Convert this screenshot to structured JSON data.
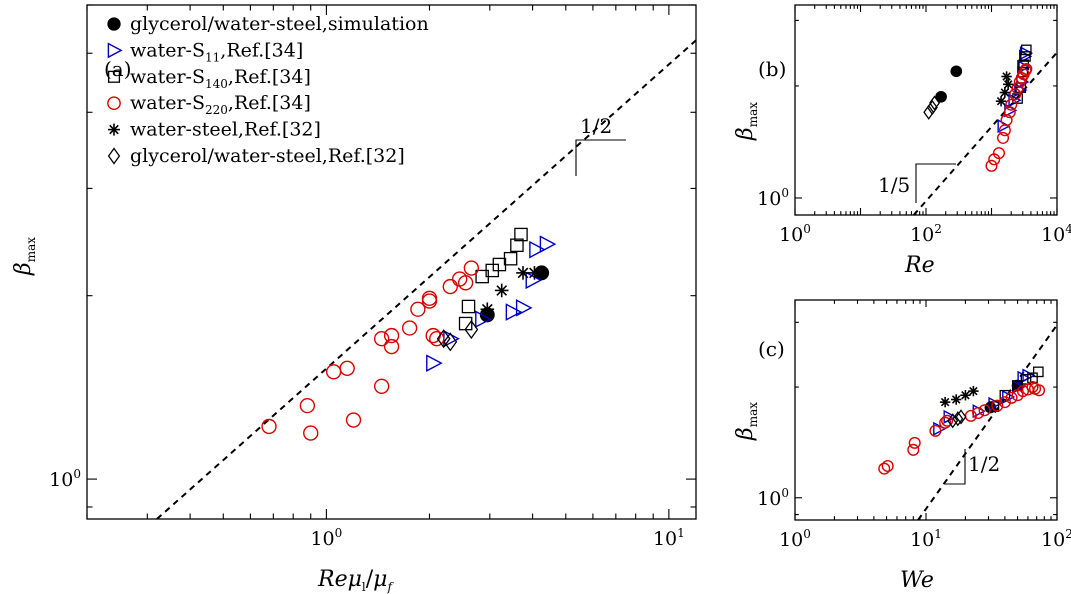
{
  "chart_data": [
    {
      "panel_label": "(a)",
      "type": "scatter",
      "xlabel": "Reμ_l/μ_f",
      "ylabel": "β_max",
      "x_scale": "log",
      "y_scale": "log",
      "xlim": [
        0.2,
        12
      ],
      "ylim": [
        0.86,
        6.0
      ],
      "x_ticks": [
        {
          "value": 1,
          "base": "10",
          "exp": "0"
        },
        {
          "value": 10,
          "base": "10",
          "exp": "1"
        }
      ],
      "y_ticks": [
        {
          "value": 1,
          "base": "10",
          "exp": "0"
        }
      ],
      "legend_position": "top-left",
      "slope_label": "1/2",
      "fit_line": {
        "style": "dashed",
        "slope": 0.5,
        "points": [
          [
            0.32,
            0.86
          ],
          [
            12,
            5.25
          ]
        ]
      },
      "series": [
        {
          "name": "glycerol/water-steel,simulation",
          "marker": "filled-circle",
          "color": "#000000",
          "points": [
            [
              2.95,
              1.86
            ],
            [
              4.25,
              2.18
            ]
          ]
        },
        {
          "name": "water-S11,Ref.[34]",
          "marker": "triangle-right",
          "color": "#0000cc",
          "points": [
            [
              2.05,
              1.55
            ],
            [
              2.3,
              1.7
            ],
            [
              2.85,
              1.83
            ],
            [
              3.5,
              1.88
            ],
            [
              3.75,
              1.91
            ],
            [
              4.0,
              2.12
            ],
            [
              4.1,
              2.38
            ],
            [
              4.4,
              2.43
            ]
          ]
        },
        {
          "name": "water-S140,Ref.[34]",
          "marker": "square",
          "color": "#000000",
          "points": [
            [
              2.55,
              1.8
            ],
            [
              2.6,
              1.92
            ],
            [
              2.85,
              2.15
            ],
            [
              3.05,
              2.2
            ],
            [
              3.2,
              2.25
            ],
            [
              3.45,
              2.3
            ],
            [
              3.6,
              2.42
            ],
            [
              3.7,
              2.52
            ]
          ]
        },
        {
          "name": "water-S220,Ref.[34]",
          "marker": "circle",
          "color": "#dd0000",
          "points": [
            [
              0.68,
              1.22
            ],
            [
              0.88,
              1.32
            ],
            [
              0.9,
              1.19
            ],
            [
              1.05,
              1.5
            ],
            [
              1.15,
              1.52
            ],
            [
              1.2,
              1.25
            ],
            [
              1.45,
              1.42
            ],
            [
              1.45,
              1.7
            ],
            [
              1.55,
              1.65
            ],
            [
              1.55,
              1.72
            ],
            [
              1.75,
              1.77
            ],
            [
              1.85,
              1.9
            ],
            [
              2.0,
              1.98
            ],
            [
              2.0,
              1.96
            ],
            [
              2.05,
              1.72
            ],
            [
              2.1,
              1.7
            ],
            [
              2.3,
              2.07
            ],
            [
              2.45,
              2.13
            ],
            [
              2.55,
              2.1
            ],
            [
              2.65,
              2.22
            ]
          ]
        },
        {
          "name": "water-steel,Ref.[32]",
          "marker": "asterisk",
          "color": "#000000",
          "points": [
            [
              2.95,
              1.9
            ],
            [
              3.25,
              2.04
            ],
            [
              3.75,
              2.18
            ],
            [
              4.05,
              2.18
            ]
          ]
        },
        {
          "name": "glycerol/water-steel,Ref.[32]",
          "marker": "diamond",
          "color": "#000000",
          "points": [
            [
              2.2,
              1.7
            ],
            [
              2.3,
              1.68
            ],
            [
              2.65,
              1.76
            ]
          ]
        }
      ]
    },
    {
      "panel_label": "(b)",
      "type": "scatter",
      "xlabel": "Re",
      "ylabel": "β_max",
      "x_scale": "log",
      "y_scale": "log",
      "xlim": [
        1,
        10000
      ],
      "ylim": [
        0.9,
        3.3
      ],
      "x_ticks": [
        {
          "value": 1,
          "base": "10",
          "exp": "0"
        },
        {
          "value": 100,
          "base": "10",
          "exp": "2"
        },
        {
          "value": 10000,
          "base": "10",
          "exp": "4"
        }
      ],
      "y_ticks": [
        {
          "value": 1,
          "base": "10",
          "exp": "0"
        }
      ],
      "slope_label": "1/5",
      "fit_line": {
        "style": "dashed",
        "slope": 0.2,
        "points": [
          [
            65,
            0.9
          ],
          [
            10000,
            2.46
          ]
        ]
      },
      "series": [
        {
          "name": "glycerol/water-steel,simulation",
          "marker": "filled-circle",
          "color": "#000000",
          "points": [
            [
              170,
              1.87
            ],
            [
              290,
              2.19
            ]
          ]
        },
        {
          "name": "water-S11,Ref.[34]",
          "marker": "triangle-right",
          "color": "#0000cc",
          "points": [
            [
              1500,
              1.56
            ],
            [
              1900,
              1.72
            ],
            [
              2200,
              1.83
            ],
            [
              2700,
              1.95
            ],
            [
              2900,
              2.05
            ],
            [
              3000,
              2.25
            ],
            [
              3200,
              2.4
            ],
            [
              3300,
              2.45
            ]
          ]
        },
        {
          "name": "water-S140,Ref.[34]",
          "marker": "square",
          "color": "#000000",
          "points": [
            [
              2500,
              1.85
            ],
            [
              2800,
              1.98
            ],
            [
              3000,
              2.18
            ],
            [
              3100,
              2.28
            ],
            [
              3300,
              2.4
            ],
            [
              3400,
              2.5
            ]
          ]
        },
        {
          "name": "water-S220,Ref.[34]",
          "marker": "circle",
          "color": "#dd0000",
          "points": [
            [
              1000,
              1.22
            ],
            [
              1100,
              1.27
            ],
            [
              1300,
              1.32
            ],
            [
              1500,
              1.45
            ],
            [
              1600,
              1.52
            ],
            [
              1700,
              1.62
            ],
            [
              1900,
              1.7
            ],
            [
              2000,
              1.78
            ],
            [
              2300,
              1.9
            ],
            [
              2500,
              1.97
            ],
            [
              2700,
              2.05
            ],
            [
              2900,
              2.1
            ],
            [
              3100,
              2.15
            ],
            [
              3300,
              2.2
            ],
            [
              3400,
              2.22
            ]
          ]
        },
        {
          "name": "water-steel,Ref.[32]",
          "marker": "asterisk",
          "color": "#000000",
          "points": [
            [
              1400,
              1.82
            ],
            [
              1600,
              1.92
            ],
            [
              1800,
              2.02
            ],
            [
              1700,
              2.12
            ]
          ]
        },
        {
          "name": "glycerol/water-steel,Ref.[32]",
          "marker": "diamond",
          "color": "#000000",
          "points": [
            [
              110,
              1.7
            ],
            [
              125,
              1.75
            ],
            [
              135,
              1.8
            ]
          ]
        }
      ]
    },
    {
      "panel_label": "(c)",
      "type": "scatter",
      "xlabel": "We",
      "ylabel": "β_max",
      "x_scale": "log",
      "y_scale": "log",
      "xlim": [
        1,
        100
      ],
      "ylim": [
        0.87,
        3.45
      ],
      "x_ticks": [
        {
          "value": 1,
          "base": "10",
          "exp": "0"
        },
        {
          "value": 10,
          "base": "10",
          "exp": "1"
        },
        {
          "value": 100,
          "base": "10",
          "exp": "2"
        }
      ],
      "y_ticks": [
        {
          "value": 1,
          "base": "10",
          "exp": "0"
        }
      ],
      "slope_label": "1/2",
      "fit_line": {
        "style": "dashed",
        "slope": 0.5,
        "points": [
          [
            8.7,
            0.87
          ],
          [
            100,
            2.95
          ]
        ]
      },
      "series": [
        {
          "name": "glycerol/water-steel,simulation",
          "marker": "filled-circle",
          "color": "#000000",
          "points": [
            [
              31,
              1.76
            ],
            [
              50,
              2.02
            ]
          ]
        },
        {
          "name": "water-S11,Ref.[34]",
          "marker": "triangle-right",
          "color": "#0000cc",
          "points": [
            [
              12.5,
              1.54
            ],
            [
              15,
              1.66
            ],
            [
              25,
              1.72
            ],
            [
              33,
              1.8
            ],
            [
              42,
              1.88
            ],
            [
              50,
              2.0
            ],
            [
              55,
              2.12
            ],
            [
              60,
              2.15
            ]
          ]
        },
        {
          "name": "water-S140,Ref.[34]",
          "marker": "square",
          "color": "#000000",
          "points": [
            [
              33,
              1.77
            ],
            [
              40,
              1.9
            ],
            [
              50,
              2.02
            ],
            [
              58,
              2.1
            ],
            [
              65,
              2.12
            ],
            [
              72,
              2.2
            ]
          ]
        },
        {
          "name": "water-S220,Ref.[34]",
          "marker": "circle",
          "color": "#dd0000",
          "points": [
            [
              4.8,
              1.2
            ],
            [
              5.1,
              1.22
            ],
            [
              8.0,
              1.35
            ],
            [
              8.2,
              1.41
            ],
            [
              11.8,
              1.52
            ],
            [
              14,
              1.6
            ],
            [
              14.5,
              1.62
            ],
            [
              22,
              1.67
            ],
            [
              25,
              1.7
            ],
            [
              28,
              1.73
            ],
            [
              35,
              1.78
            ],
            [
              40,
              1.82
            ],
            [
              45,
              1.87
            ],
            [
              50,
              1.9
            ],
            [
              55,
              1.95
            ],
            [
              60,
              1.97
            ],
            [
              65,
              2.0
            ],
            [
              68,
              1.98
            ],
            [
              73,
              1.96
            ]
          ]
        },
        {
          "name": "water-steel,Ref.[32]",
          "marker": "asterisk",
          "color": "#000000",
          "points": [
            [
              14,
              1.82
            ],
            [
              17,
              1.85
            ],
            [
              20,
              1.9
            ],
            [
              23,
              1.95
            ]
          ]
        },
        {
          "name": "glycerol/water-steel,Ref.[32]",
          "marker": "diamond",
          "color": "#000000",
          "points": [
            [
              16,
              1.62
            ],
            [
              17.5,
              1.64
            ],
            [
              18.5,
              1.66
            ]
          ]
        }
      ]
    }
  ]
}
